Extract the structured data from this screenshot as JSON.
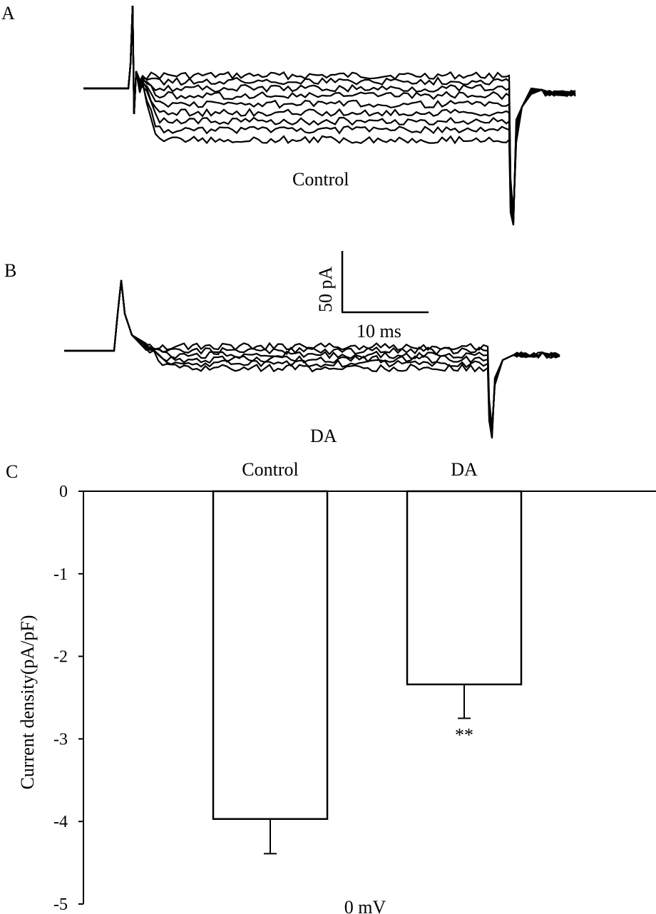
{
  "panels": {
    "a": {
      "letter": "A",
      "label": "Control"
    },
    "b": {
      "letter": "B",
      "label": "DA"
    },
    "c": {
      "letter": "C"
    }
  },
  "scale_bar": {
    "current": "50 pA",
    "time": "10 ms"
  },
  "chart_data": {
    "type": "bar",
    "categories": [
      "Control",
      "DA"
    ],
    "values": [
      -3.97,
      -2.34
    ],
    "errors": [
      0.42,
      0.41
    ],
    "significance": [
      "",
      "**"
    ],
    "ylabel": "Current density(pA/pF)",
    "xlabel": "0 mV",
    "ylim": [
      -5,
      0
    ],
    "yticks": [
      0,
      -1,
      -2,
      -3,
      -4,
      -5
    ],
    "category_labels_position": "top",
    "bar_fill": "#ffffff",
    "bar_edge": "#000000"
  }
}
